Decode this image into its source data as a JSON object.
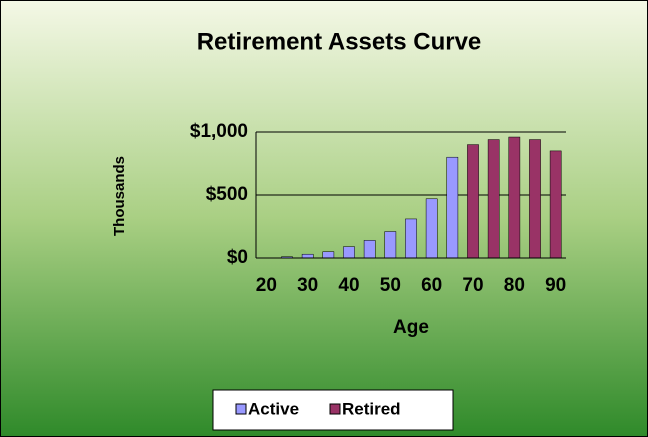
{
  "chart_data": {
    "type": "bar",
    "title": "Retirement Assets Curve",
    "xlabel": "Age",
    "ylabel": "Thousands",
    "categories": [
      "20",
      null,
      "30",
      null,
      "40",
      null,
      "50",
      null,
      "60",
      null,
      "70",
      null,
      "80",
      null,
      "90"
    ],
    "series": [
      {
        "name": "Active",
        "color": "#9999ff",
        "values": [
          0,
          10,
          30,
          50,
          90,
          140,
          210,
          310,
          470,
          800,
          null,
          null,
          null,
          null,
          null
        ]
      },
      {
        "name": "Retired",
        "color": "#993366",
        "values": [
          null,
          null,
          null,
          null,
          null,
          null,
          null,
          null,
          null,
          null,
          900,
          940,
          960,
          940,
          850
        ]
      }
    ],
    "ylim": [
      0,
      1000
    ],
    "yticks": [
      {
        "value": 0,
        "label": "$0"
      },
      {
        "value": 500,
        "label": "$500"
      },
      {
        "value": 1000,
        "label": "$1,000"
      }
    ],
    "grid": true,
    "legend": "bottom"
  }
}
